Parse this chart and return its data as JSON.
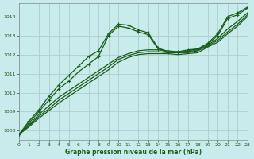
{
  "xlabel": "Graphe pression niveau de la mer (hPa)",
  "bg_color": "#c8ecec",
  "line_color": "#1a5c1a",
  "grid_color": "#b0cccc",
  "xlim": [
    0,
    23
  ],
  "ylim": [
    1007.5,
    1014.7
  ],
  "yticks": [
    1008,
    1009,
    1010,
    1011,
    1012,
    1013,
    1014
  ],
  "xticks": [
    0,
    1,
    2,
    3,
    4,
    5,
    6,
    7,
    8,
    9,
    10,
    11,
    12,
    13,
    14,
    15,
    16,
    17,
    18,
    19,
    20,
    21,
    22,
    23
  ],
  "line1_x": [
    0,
    1,
    2,
    3,
    4,
    5,
    6,
    7,
    8,
    9,
    10,
    11,
    12,
    13,
    14,
    15,
    16,
    17,
    18,
    19,
    20,
    21,
    22,
    23
  ],
  "line1_y": [
    1007.8,
    1008.5,
    1009.1,
    1009.8,
    1010.4,
    1010.9,
    1011.4,
    1011.9,
    1012.2,
    1013.1,
    1013.6,
    1013.55,
    1013.3,
    1013.15,
    1012.35,
    1012.15,
    1012.15,
    1012.25,
    1012.3,
    1012.6,
    1013.1,
    1014.0,
    1014.2,
    1014.5
  ],
  "line2_x": [
    0,
    1,
    2,
    3,
    4,
    5,
    6,
    7,
    8,
    9,
    10,
    11,
    12,
    13,
    14,
    15,
    16,
    17,
    18,
    19,
    20,
    21,
    22,
    23
  ],
  "line2_y": [
    1007.8,
    1008.4,
    1009.0,
    1009.6,
    1010.2,
    1010.6,
    1011.1,
    1011.5,
    1011.9,
    1013.0,
    1013.5,
    1013.4,
    1013.2,
    1013.05,
    1012.3,
    1012.1,
    1012.1,
    1012.2,
    1012.3,
    1012.55,
    1013.0,
    1013.9,
    1014.1,
    1014.45
  ],
  "line3_x": [
    0,
    1,
    2,
    3,
    4,
    5,
    6,
    7,
    8,
    9,
    10,
    11,
    12,
    13,
    14,
    15,
    16,
    17,
    18,
    19,
    20,
    21,
    22,
    23
  ],
  "line3_y": [
    1007.8,
    1008.3,
    1008.85,
    1009.3,
    1009.75,
    1010.1,
    1010.45,
    1010.8,
    1011.15,
    1011.5,
    1011.85,
    1012.05,
    1012.2,
    1012.25,
    1012.25,
    1012.2,
    1012.15,
    1012.15,
    1012.25,
    1012.5,
    1012.85,
    1013.35,
    1013.75,
    1014.2
  ],
  "line4_x": [
    0,
    1,
    2,
    3,
    4,
    5,
    6,
    7,
    8,
    9,
    10,
    11,
    12,
    13,
    14,
    15,
    16,
    17,
    18,
    19,
    20,
    21,
    22,
    23
  ],
  "line4_y": [
    1007.8,
    1008.25,
    1008.75,
    1009.15,
    1009.6,
    1009.95,
    1010.3,
    1010.65,
    1011.0,
    1011.35,
    1011.75,
    1011.95,
    1012.1,
    1012.15,
    1012.15,
    1012.1,
    1012.1,
    1012.1,
    1012.2,
    1012.45,
    1012.75,
    1013.2,
    1013.6,
    1014.1
  ],
  "line5_x": [
    0,
    1,
    2,
    3,
    4,
    5,
    6,
    7,
    8,
    9,
    10,
    11,
    12,
    13,
    14,
    15,
    16,
    17,
    18,
    19,
    20,
    21,
    22,
    23
  ],
  "line5_y": [
    1007.8,
    1008.2,
    1008.65,
    1009.05,
    1009.45,
    1009.8,
    1010.15,
    1010.5,
    1010.85,
    1011.2,
    1011.6,
    1011.85,
    1012.0,
    1012.05,
    1012.05,
    1012.05,
    1012.0,
    1012.05,
    1012.1,
    1012.4,
    1012.65,
    1013.1,
    1013.5,
    1014.0
  ]
}
